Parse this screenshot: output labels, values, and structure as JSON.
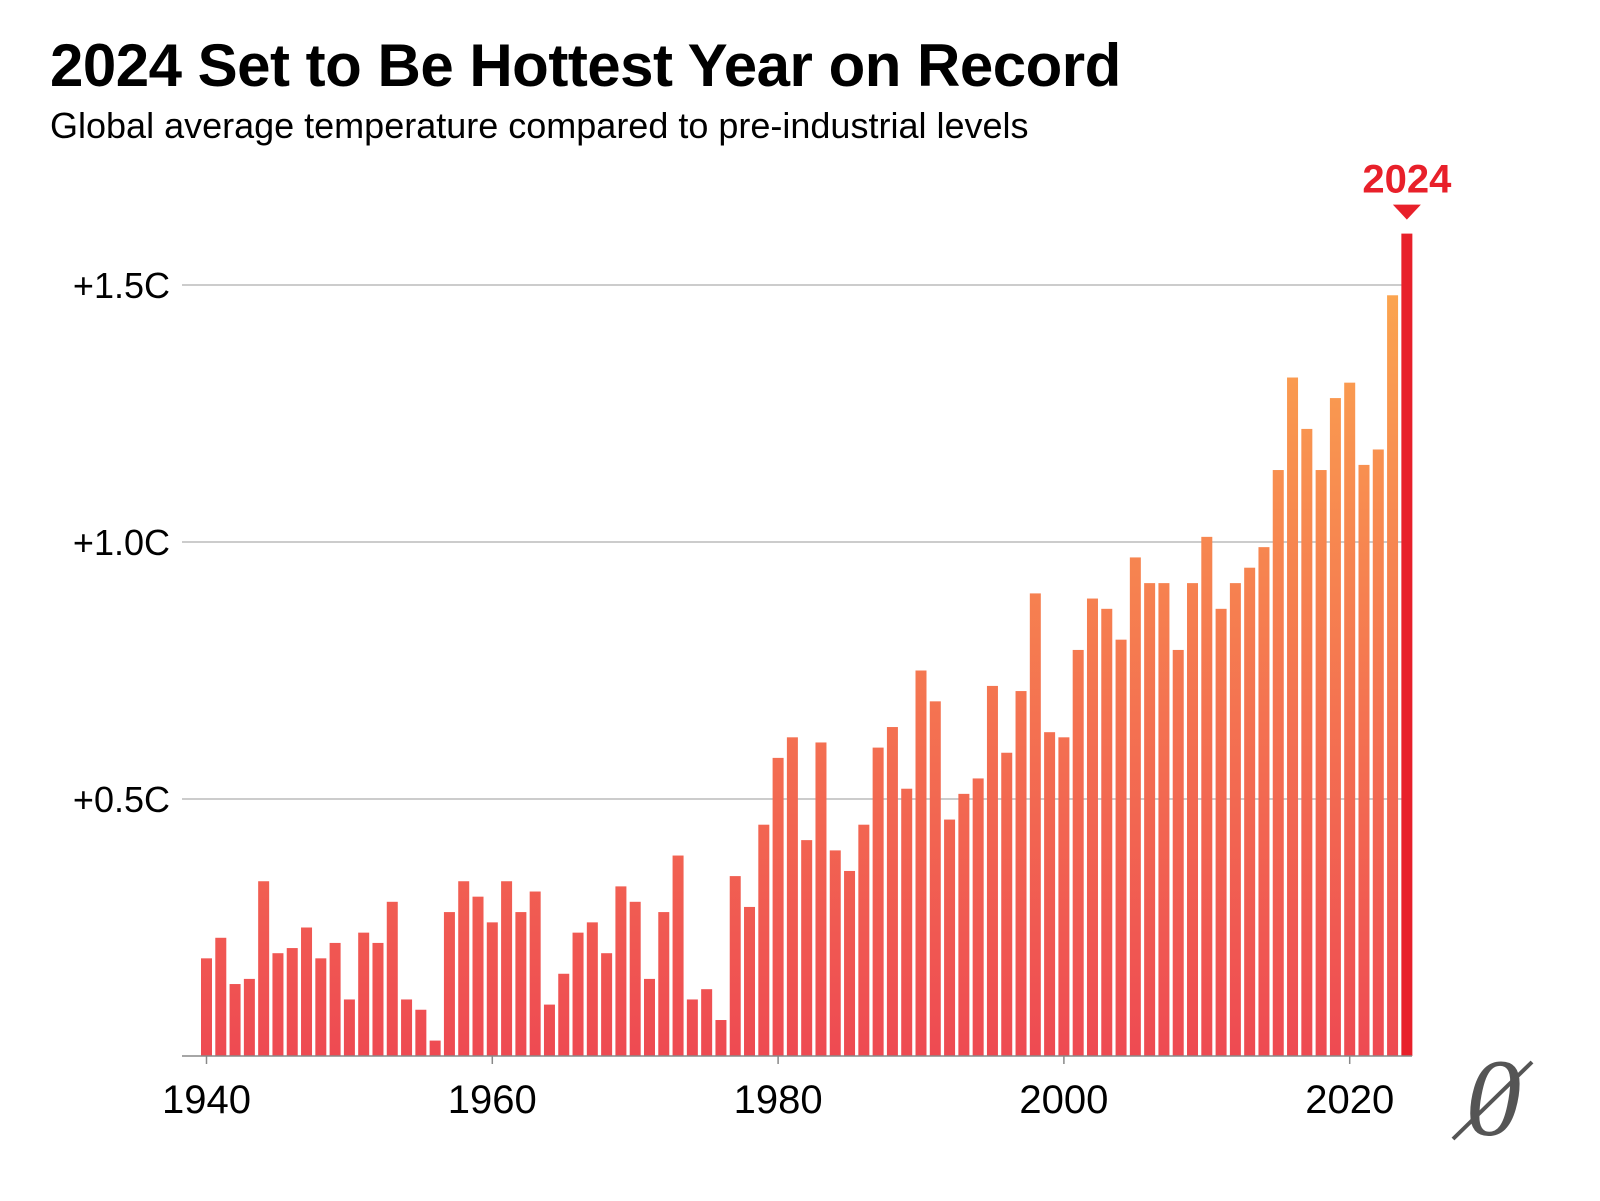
{
  "header": {
    "title": "2024 Set to Be Hottest Year on Record",
    "subtitle": "Global average temperature compared to pre-industrial levels"
  },
  "logo": {
    "icon": "slashed-zero-logo-icon",
    "color": "#555555"
  },
  "colors": {
    "bar_bottom": "#ee4a52",
    "bar_top": "#fcab4f",
    "highlight": "#e8202a",
    "grid": "#bbbbbb"
  },
  "chart_data": {
    "type": "bar",
    "title": "2024 Set to Be Hottest Year on Record",
    "subtitle": "Global average temperature compared to pre-industrial levels",
    "xlabel": "",
    "ylabel": "",
    "ylim": [
      0,
      1.6
    ],
    "grid": true,
    "y_ticks": [
      {
        "value": 0.5,
        "label": "+0.5C"
      },
      {
        "value": 1.0,
        "label": "+1.0C"
      },
      {
        "value": 1.5,
        "label": "+1.5C"
      }
    ],
    "x_ticks": [
      {
        "value": 1940,
        "label": "1940"
      },
      {
        "value": 1960,
        "label": "1960"
      },
      {
        "value": 1980,
        "label": "1980"
      },
      {
        "value": 2000,
        "label": "2000"
      },
      {
        "value": 2020,
        "label": "2020"
      }
    ],
    "highlight": {
      "year": 2024,
      "label": "2024"
    },
    "x": [
      1940,
      1941,
      1942,
      1943,
      1944,
      1945,
      1946,
      1947,
      1948,
      1949,
      1950,
      1951,
      1952,
      1953,
      1954,
      1955,
      1956,
      1957,
      1958,
      1959,
      1960,
      1961,
      1962,
      1963,
      1964,
      1965,
      1966,
      1967,
      1968,
      1969,
      1970,
      1971,
      1972,
      1973,
      1974,
      1975,
      1976,
      1977,
      1978,
      1979,
      1980,
      1981,
      1982,
      1983,
      1984,
      1985,
      1986,
      1987,
      1988,
      1989,
      1990,
      1991,
      1992,
      1993,
      1994,
      1995,
      1996,
      1997,
      1998,
      1999,
      2000,
      2001,
      2002,
      2003,
      2004,
      2005,
      2006,
      2007,
      2008,
      2009,
      2010,
      2011,
      2012,
      2013,
      2014,
      2015,
      2016,
      2017,
      2018,
      2019,
      2020,
      2021,
      2022,
      2023,
      2024
    ],
    "values": [
      0.19,
      0.23,
      0.14,
      0.15,
      0.34,
      0.2,
      0.21,
      0.25,
      0.19,
      0.22,
      0.11,
      0.24,
      0.22,
      0.3,
      0.11,
      0.09,
      0.03,
      0.28,
      0.34,
      0.31,
      0.26,
      0.34,
      0.28,
      0.32,
      0.1,
      0.16,
      0.24,
      0.26,
      0.2,
      0.33,
      0.3,
      0.15,
      0.28,
      0.39,
      0.11,
      0.13,
      0.07,
      0.35,
      0.29,
      0.45,
      0.58,
      0.62,
      0.42,
      0.61,
      0.4,
      0.36,
      0.45,
      0.6,
      0.64,
      0.52,
      0.75,
      0.69,
      0.46,
      0.51,
      0.54,
      0.72,
      0.59,
      0.71,
      0.9,
      0.63,
      0.62,
      0.79,
      0.89,
      0.87,
      0.81,
      0.97,
      0.92,
      0.92,
      0.79,
      0.92,
      1.01,
      0.87,
      0.92,
      0.95,
      0.99,
      1.14,
      1.32,
      1.22,
      1.14,
      1.28,
      1.31,
      1.15,
      1.18,
      1.48,
      1.6
    ]
  }
}
